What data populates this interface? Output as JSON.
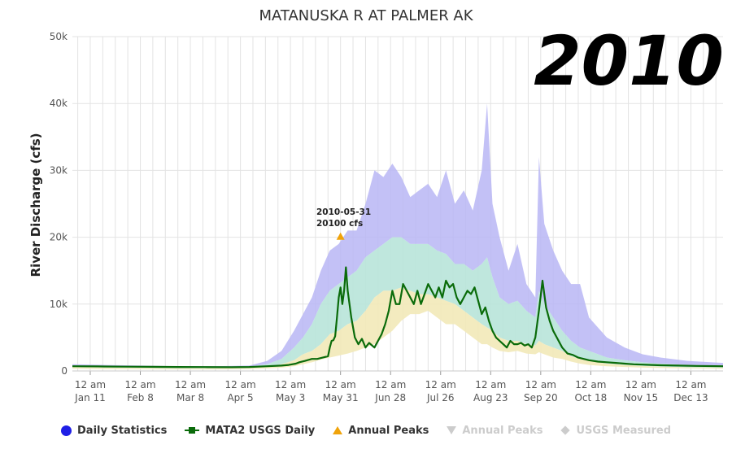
{
  "year_label": "2010",
  "colors": {
    "max_band": "#b9b6f5",
    "p75_band": "#b8e4d9",
    "p25_band": "#f2e9b8",
    "min_band": "#e7c0c0",
    "daily_line": "#0a6b0a",
    "annual_peak": "#f0a30a",
    "legend_daily_stats": "#1f1fe6",
    "hidden": "#cccccc",
    "grid": "#e3e3e3"
  },
  "legend": [
    {
      "label": "Daily Statistics",
      "symbol": "circle",
      "color": "#1f1fe6",
      "visible": true
    },
    {
      "label": "MATA2 USGS Daily",
      "symbol": "line-square",
      "color": "#0a6b0a",
      "visible": true
    },
    {
      "label": "Annual Peaks",
      "symbol": "triangle-up",
      "color": "#f0a30a",
      "visible": true
    },
    {
      "label": "Annual Peaks",
      "symbol": "triangle-down",
      "color": "#cccccc",
      "visible": false
    },
    {
      "label": "USGS Measured",
      "symbol": "diamond",
      "color": "#cccccc",
      "visible": false
    }
  ],
  "chart_data": {
    "type": "area",
    "title": "MATANUSKA R AT PALMER AK",
    "xlabel": "",
    "ylabel": "River Discharge (cfs)",
    "x_unit": "day of year 2010",
    "xlim": [
      1,
      365
    ],
    "ylim": [
      0,
      50000
    ],
    "y_ticks": [
      0,
      10000,
      20000,
      30000,
      40000,
      50000
    ],
    "y_tick_labels": [
      "0",
      "10k",
      "20k",
      "30k",
      "40k",
      "50k"
    ],
    "x_ticks": [
      {
        "doy": 11,
        "line1": "12 am",
        "line2": "Jan 11"
      },
      {
        "doy": 39,
        "line1": "12 am",
        "line2": "Feb 8"
      },
      {
        "doy": 67,
        "line1": "12 am",
        "line2": "Mar 8"
      },
      {
        "doy": 95,
        "line1": "12 am",
        "line2": "Apr 5"
      },
      {
        "doy": 123,
        "line1": "12 am",
        "line2": "May 3"
      },
      {
        "doy": 151,
        "line1": "12 am",
        "line2": "May 31"
      },
      {
        "doy": 179,
        "line1": "12 am",
        "line2": "Jun 28"
      },
      {
        "doy": 207,
        "line1": "12 am",
        "line2": "Jul 26"
      },
      {
        "doy": 235,
        "line1": "12 am",
        "line2": "Aug 23"
      },
      {
        "doy": 263,
        "line1": "12 am",
        "line2": "Sep 20"
      },
      {
        "doy": 291,
        "line1": "12 am",
        "line2": "Oct 18"
      },
      {
        "doy": 319,
        "line1": "12 am",
        "line2": "Nov 15"
      },
      {
        "doy": 347,
        "line1": "12 am",
        "line2": "Dec 13"
      }
    ],
    "grid": true,
    "legend_position": "bottom",
    "bands": {
      "x": [
        1,
        20,
        40,
        60,
        80,
        100,
        110,
        118,
        125,
        130,
        135,
        140,
        145,
        150,
        155,
        160,
        165,
        170,
        175,
        180,
        185,
        190,
        195,
        200,
        205,
        210,
        215,
        220,
        225,
        230,
        233,
        236,
        240,
        245,
        250,
        255,
        260,
        262,
        265,
        270,
        275,
        280,
        285,
        290,
        300,
        310,
        320,
        330,
        345,
        365
      ],
      "max": [
        1000,
        900,
        800,
        700,
        700,
        800,
        1500,
        3000,
        6000,
        8500,
        11000,
        15000,
        18000,
        19000,
        21000,
        21000,
        25000,
        30000,
        29000,
        31000,
        29000,
        26000,
        27000,
        28000,
        26000,
        30000,
        25000,
        27000,
        24000,
        30000,
        40000,
        25000,
        20000,
        15000,
        19000,
        13000,
        11000,
        32000,
        22000,
        18000,
        15000,
        13000,
        13000,
        8000,
        5000,
        3500,
        2500,
        2000,
        1500,
        1200
      ],
      "p75": [
        800,
        700,
        650,
        600,
        600,
        650,
        1000,
        1800,
        3500,
        5000,
        7000,
        10000,
        12000,
        13000,
        14000,
        15000,
        17000,
        18000,
        19000,
        20000,
        20000,
        19000,
        19000,
        19000,
        18000,
        17500,
        16000,
        16000,
        15000,
        16000,
        17000,
        14000,
        11000,
        10000,
        10500,
        9000,
        8000,
        12000,
        10000,
        8000,
        6000,
        4500,
        3500,
        3000,
        2000,
        1600,
        1300,
        1100,
        900,
        800
      ],
      "p25": [
        600,
        500,
        450,
        400,
        400,
        450,
        650,
        1000,
        1600,
        2500,
        3000,
        4000,
        5500,
        6000,
        7000,
        7500,
        9000,
        11000,
        12000,
        12000,
        12500,
        12000,
        11500,
        11500,
        11000,
        10500,
        10000,
        9000,
        8000,
        7000,
        6500,
        6000,
        5000,
        4500,
        4500,
        4000,
        3800,
        4500,
        4000,
        3500,
        3000,
        2200,
        1800,
        1500,
        1100,
        900,
        750,
        650,
        550,
        500
      ],
      "min": [
        350,
        300,
        280,
        250,
        250,
        300,
        400,
        500,
        700,
        1000,
        1300,
        1700,
        2000,
        2300,
        2600,
        3000,
        3500,
        4000,
        5000,
        6000,
        7500,
        8500,
        8500,
        9000,
        8000,
        7000,
        7000,
        6000,
        5000,
        4000,
        4000,
        3500,
        3000,
        2800,
        3000,
        2600,
        2500,
        2800,
        2500,
        2000,
        1800,
        1400,
        1100,
        900,
        700,
        600,
        500,
        450,
        400,
        350
      ]
    },
    "series": [
      {
        "name": "MATA2 USGS Daily",
        "x": [
          1,
          15,
          30,
          45,
          60,
          75,
          90,
          100,
          110,
          118,
          122,
          126,
          128,
          131,
          135,
          138,
          141,
          144,
          145,
          146,
          147,
          148,
          149,
          150,
          151,
          152,
          153,
          154,
          155,
          156,
          157,
          159,
          161,
          163,
          165,
          167,
          170,
          172,
          174,
          176,
          178,
          180,
          182,
          184,
          186,
          188,
          190,
          192,
          194,
          196,
          198,
          200,
          202,
          204,
          206,
          208,
          210,
          212,
          214,
          216,
          218,
          220,
          222,
          224,
          226,
          228,
          230,
          232,
          234,
          236,
          238,
          240,
          242,
          244,
          246,
          248,
          250,
          252,
          254,
          256,
          258,
          260,
          262,
          264,
          266,
          268,
          270,
          272,
          275,
          278,
          281,
          284,
          287,
          290,
          295,
          300,
          305,
          310,
          315,
          320,
          325,
          330,
          340,
          350,
          365
        ],
        "y": [
          700,
          680,
          650,
          620,
          600,
          580,
          560,
          600,
          700,
          800,
          900,
          1100,
          1300,
          1500,
          1800,
          1800,
          2000,
          2200,
          3500,
          4500,
          4600,
          5200,
          8000,
          11000,
          12500,
          10000,
          12000,
          15500,
          12000,
          10000,
          8000,
          5000,
          4000,
          4800,
          3500,
          4200,
          3500,
          4500,
          5500,
          7000,
          9000,
          12000,
          10000,
          10000,
          13000,
          12000,
          11000,
          10000,
          12000,
          10000,
          11500,
          13000,
          12000,
          11000,
          12500,
          11000,
          13500,
          12500,
          13000,
          11000,
          10000,
          11000,
          12000,
          11500,
          12500,
          10500,
          8500,
          9500,
          7500,
          6000,
          5000,
          4500,
          4000,
          3500,
          4500,
          4000,
          4000,
          4200,
          3800,
          4000,
          3500,
          5000,
          9000,
          13500,
          9500,
          7500,
          6000,
          5000,
          3500,
          2600,
          2400,
          2000,
          1800,
          1600,
          1400,
          1300,
          1200,
          1100,
          1000,
          950,
          900,
          850,
          800,
          750,
          700
        ]
      },
      {
        "name": "Annual Peaks",
        "points": [
          {
            "date": "2010-05-31",
            "y": 20100
          }
        ],
        "label_line1": "2010-05-31",
        "label_line2": "20100 cfs"
      }
    ]
  }
}
